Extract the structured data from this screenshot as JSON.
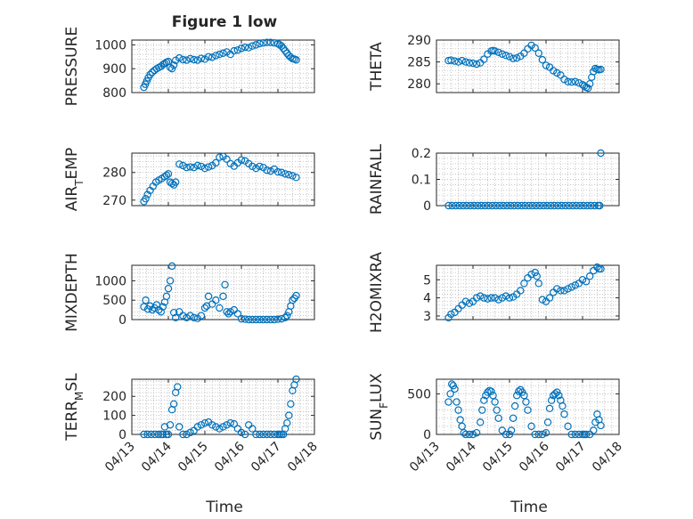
{
  "figure": {
    "title": "Figure 1 low",
    "x_axis_label": "Time"
  },
  "colors": {
    "marker": "#0072BD",
    "axes": "#262626",
    "grid": "#b0b0b0"
  },
  "chart_data": [
    {
      "type": "scatter",
      "id": "pressure",
      "ylabel": "PRESSURE",
      "ylim": [
        800,
        1020
      ],
      "yticks": [
        800,
        900,
        1000
      ],
      "ytick_labels": [
        "800",
        "900",
        "1000"
      ],
      "xlim": [
        0,
        5
      ],
      "show_xticks": false,
      "grid": true,
      "x": [
        0.33,
        0.37,
        0.41,
        0.45,
        0.5,
        0.56,
        0.62,
        0.68,
        0.74,
        0.8,
        0.86,
        0.9,
        0.95,
        1.0,
        1.05,
        1.1,
        1.15,
        1.2,
        1.3,
        1.4,
        1.5,
        1.6,
        1.7,
        1.8,
        1.9,
        2.0,
        2.1,
        2.2,
        2.3,
        2.4,
        2.5,
        2.6,
        2.7,
        2.8,
        2.9,
        3.0,
        3.1,
        3.2,
        3.3,
        3.4,
        3.5,
        3.6,
        3.7,
        3.8,
        3.9,
        4.0,
        4.05,
        4.1,
        4.15,
        4.2,
        4.25,
        4.3,
        4.35,
        4.4,
        4.45,
        4.5
      ],
      "y": [
        822,
        835,
        848,
        862,
        875,
        885,
        893,
        900,
        905,
        910,
        918,
        922,
        927,
        930,
        905,
        900,
        915,
        935,
        945,
        938,
        936,
        942,
        938,
        936,
        943,
        940,
        950,
        948,
        955,
        960,
        965,
        970,
        960,
        975,
        978,
        985,
        990,
        988,
        995,
        1000,
        1005,
        1008,
        1010,
        1010,
        1008,
        1005,
        1000,
        995,
        985,
        975,
        965,
        955,
        948,
        942,
        940,
        937
      ]
    },
    {
      "type": "scatter",
      "id": "theta",
      "ylabel": "THETA",
      "ylim": [
        278,
        290
      ],
      "yticks": [
        280,
        285,
        290
      ],
      "ytick_labels": [
        "280",
        "285",
        "290"
      ],
      "xlim": [
        0,
        5
      ],
      "show_xticks": false,
      "grid": true,
      "x": [
        0.33,
        0.4,
        0.5,
        0.6,
        0.7,
        0.8,
        0.9,
        1.0,
        1.1,
        1.2,
        1.3,
        1.4,
        1.5,
        1.55,
        1.6,
        1.7,
        1.8,
        1.9,
        2.0,
        2.1,
        2.2,
        2.3,
        2.4,
        2.5,
        2.6,
        2.7,
        2.8,
        2.9,
        3.0,
        3.1,
        3.2,
        3.3,
        3.4,
        3.5,
        3.6,
        3.7,
        3.8,
        3.9,
        4.0,
        4.05,
        4.1,
        4.15,
        4.2,
        4.25,
        4.3,
        4.35,
        4.4,
        4.45,
        4.5
      ],
      "y": [
        285.3,
        285.4,
        285.2,
        285.0,
        285.3,
        285.0,
        284.8,
        284.7,
        284.5,
        284.8,
        285.6,
        286.8,
        287.5,
        287.6,
        287.5,
        287.2,
        286.8,
        286.5,
        286.2,
        285.8,
        285.9,
        286.3,
        287.0,
        288.0,
        288.8,
        288.2,
        287.0,
        285.5,
        284.2,
        283.8,
        283.0,
        282.5,
        282.0,
        281.0,
        280.5,
        280.4,
        280.5,
        280.2,
        279.8,
        279.5,
        279.2,
        279.0,
        280.0,
        281.5,
        282.8,
        283.5,
        283.3,
        283.2,
        283.3
      ]
    },
    {
      "type": "scatter",
      "id": "air_temp",
      "ylabel": "AIR_TEMP",
      "ylim": [
        268,
        287
      ],
      "yticks": [
        270,
        280
      ],
      "ytick_labels": [
        "270",
        "280"
      ],
      "xlim": [
        0,
        5
      ],
      "show_xticks": false,
      "grid": true,
      "x": [
        0.33,
        0.38,
        0.43,
        0.5,
        0.58,
        0.66,
        0.74,
        0.82,
        0.9,
        0.95,
        1.0,
        1.05,
        1.1,
        1.15,
        1.2,
        1.3,
        1.4,
        1.5,
        1.6,
        1.7,
        1.8,
        1.9,
        2.0,
        2.1,
        2.2,
        2.3,
        2.4,
        2.5,
        2.6,
        2.7,
        2.8,
        2.9,
        3.0,
        3.1,
        3.2,
        3.3,
        3.4,
        3.5,
        3.6,
        3.7,
        3.8,
        3.9,
        4.0,
        4.1,
        4.2,
        4.3,
        4.4,
        4.5
      ],
      "y": [
        269.5,
        270.5,
        272,
        273.5,
        275,
        276.5,
        277.2,
        277.8,
        278.5,
        279,
        279.5,
        276.5,
        276,
        275.5,
        276.5,
        283,
        282.5,
        281.8,
        282,
        281.8,
        282.5,
        282.2,
        281.5,
        282.0,
        282.5,
        283.5,
        285.5,
        285.8,
        284.8,
        283.2,
        282.3,
        283.5,
        284.5,
        284.2,
        283.2,
        282.2,
        281.5,
        282.2,
        281.8,
        280.8,
        280.5,
        281.2,
        280.2,
        280.0,
        279.5,
        279.2,
        278.8,
        278.2
      ]
    },
    {
      "type": "scatter",
      "id": "rainfall",
      "ylabel": "RAINFALL",
      "ylim": [
        0,
        0.2
      ],
      "yticks": [
        0,
        0.1,
        0.2
      ],
      "ytick_labels": [
        "0",
        "0.1",
        "0.2"
      ],
      "xlim": [
        0,
        5
      ],
      "show_xticks": false,
      "grid": true,
      "x": [
        0.33,
        0.43,
        0.53,
        0.63,
        0.73,
        0.83,
        0.93,
        1.03,
        1.13,
        1.23,
        1.33,
        1.43,
        1.53,
        1.63,
        1.73,
        1.83,
        1.93,
        2.03,
        2.13,
        2.23,
        2.33,
        2.43,
        2.53,
        2.63,
        2.73,
        2.83,
        2.93,
        3.03,
        3.13,
        3.23,
        3.33,
        3.43,
        3.53,
        3.63,
        3.73,
        3.83,
        3.93,
        4.03,
        4.13,
        4.23,
        4.33,
        4.43,
        4.47,
        4.5
      ],
      "y": [
        0,
        0,
        0,
        0,
        0,
        0,
        0,
        0,
        0,
        0,
        0,
        0,
        0,
        0,
        0,
        0,
        0,
        0,
        0,
        0,
        0,
        0,
        0,
        0,
        0,
        0,
        0,
        0,
        0,
        0,
        0,
        0,
        0,
        0,
        0,
        0,
        0,
        0,
        0,
        0,
        0,
        0,
        0,
        0.2
      ]
    },
    {
      "type": "scatter",
      "id": "mixdepth",
      "ylabel": "MIXDEPTH",
      "ylim": [
        0,
        1400
      ],
      "yticks": [
        0,
        500,
        1000
      ],
      "ytick_labels": [
        "0",
        "500",
        "1000"
      ],
      "xlim": [
        0,
        5
      ],
      "show_xticks": false,
      "grid": true,
      "x": [
        0.33,
        0.38,
        0.44,
        0.5,
        0.56,
        0.62,
        0.68,
        0.74,
        0.8,
        0.85,
        0.9,
        0.95,
        1.0,
        1.05,
        1.1,
        1.15,
        1.2,
        1.3,
        1.4,
        1.5,
        1.6,
        1.7,
        1.8,
        1.9,
        2.0,
        2.05,
        2.1,
        2.2,
        2.3,
        2.4,
        2.5,
        2.55,
        2.6,
        2.65,
        2.7,
        2.8,
        2.9,
        3.0,
        3.1,
        3.2,
        3.3,
        3.4,
        3.5,
        3.6,
        3.7,
        3.8,
        3.9,
        4.0,
        4.1,
        4.2,
        4.25,
        4.3,
        4.35,
        4.4,
        4.45,
        4.5
      ],
      "y": [
        330,
        500,
        270,
        350,
        250,
        300,
        380,
        250,
        200,
        330,
        450,
        600,
        800,
        1000,
        1380,
        180,
        50,
        200,
        100,
        50,
        100,
        50,
        30,
        100,
        300,
        350,
        600,
        400,
        500,
        300,
        600,
        900,
        200,
        150,
        200,
        250,
        150,
        20,
        10,
        0,
        0,
        0,
        0,
        0,
        0,
        0,
        0,
        10,
        20,
        50,
        100,
        200,
        350,
        500,
        550,
        620
      ]
    },
    {
      "type": "scatter",
      "id": "h2omixra",
      "ylabel": "H2OMIXRA",
      "ylim": [
        2.8,
        5.8
      ],
      "yticks": [
        3,
        4,
        5
      ],
      "ytick_labels": [
        "3",
        "4",
        "5"
      ],
      "xlim": [
        0,
        5
      ],
      "show_xticks": false,
      "grid": true,
      "x": [
        0.33,
        0.4,
        0.5,
        0.6,
        0.7,
        0.8,
        0.9,
        1.0,
        1.1,
        1.2,
        1.3,
        1.4,
        1.5,
        1.6,
        1.7,
        1.8,
        1.9,
        2.0,
        2.1,
        2.2,
        2.3,
        2.4,
        2.5,
        2.6,
        2.7,
        2.75,
        2.8,
        2.9,
        3.0,
        3.1,
        3.2,
        3.3,
        3.4,
        3.5,
        3.6,
        3.7,
        3.8,
        3.9,
        4.0,
        4.1,
        4.2,
        4.3,
        4.4,
        4.45,
        4.5
      ],
      "y": [
        2.9,
        3.1,
        3.2,
        3.4,
        3.6,
        3.8,
        3.7,
        3.8,
        4.0,
        4.1,
        4.0,
        3.95,
        4.0,
        4.0,
        3.9,
        4.0,
        4.1,
        4.0,
        4.05,
        4.2,
        4.4,
        4.8,
        5.1,
        5.3,
        5.4,
        5.2,
        4.8,
        3.9,
        3.8,
        4.0,
        4.3,
        4.5,
        4.4,
        4.4,
        4.5,
        4.6,
        4.7,
        4.8,
        5.0,
        4.9,
        5.2,
        5.5,
        5.7,
        5.6,
        5.6
      ]
    },
    {
      "type": "scatter",
      "id": "terr_msl",
      "ylabel": "TERR_MSL",
      "ylim": [
        0,
        290
      ],
      "yticks": [
        0,
        100,
        200
      ],
      "ytick_labels": [
        "0",
        "100",
        "200"
      ],
      "xlim": [
        0,
        5
      ],
      "show_xticks": true,
      "grid": true,
      "x": [
        0.33,
        0.43,
        0.53,
        0.63,
        0.73,
        0.8,
        0.85,
        0.9,
        0.95,
        1.0,
        1.05,
        1.1,
        1.15,
        1.2,
        1.25,
        1.3,
        1.4,
        1.5,
        1.6,
        1.7,
        1.8,
        1.9,
        2.0,
        2.1,
        2.2,
        2.3,
        2.4,
        2.5,
        2.6,
        2.7,
        2.8,
        2.9,
        3.0,
        3.1,
        3.2,
        3.3,
        3.4,
        3.5,
        3.6,
        3.7,
        3.8,
        3.9,
        4.0,
        4.05,
        4.1,
        4.15,
        4.2,
        4.25,
        4.3,
        4.35,
        4.4,
        4.45,
        4.5
      ],
      "y": [
        0,
        0,
        0,
        0,
        0,
        0,
        0,
        40,
        0,
        0,
        50,
        130,
        160,
        220,
        250,
        40,
        0,
        0,
        10,
        20,
        40,
        50,
        60,
        65,
        50,
        40,
        30,
        40,
        50,
        60,
        55,
        30,
        10,
        0,
        50,
        30,
        0,
        0,
        0,
        0,
        0,
        0,
        0,
        0,
        0,
        0,
        30,
        60,
        100,
        160,
        230,
        260,
        290
      ]
    },
    {
      "type": "scatter",
      "id": "sun_flux",
      "ylabel": "SUN_FLUX",
      "ylim": [
        0,
        680
      ],
      "yticks": [
        0,
        500
      ],
      "ytick_labels": [
        "0",
        "500"
      ],
      "xlim": [
        0,
        5
      ],
      "show_xticks": true,
      "grid": true,
      "x": [
        0.33,
        0.38,
        0.42,
        0.46,
        0.5,
        0.55,
        0.6,
        0.65,
        0.7,
        0.75,
        0.8,
        0.9,
        1.0,
        1.1,
        1.2,
        1.25,
        1.3,
        1.35,
        1.4,
        1.45,
        1.5,
        1.55,
        1.6,
        1.65,
        1.7,
        1.8,
        1.9,
        2.0,
        2.05,
        2.1,
        2.15,
        2.2,
        2.25,
        2.3,
        2.35,
        2.4,
        2.45,
        2.5,
        2.6,
        2.7,
        2.8,
        2.9,
        3.0,
        3.05,
        3.1,
        3.15,
        3.2,
        3.25,
        3.3,
        3.35,
        3.4,
        3.45,
        3.5,
        3.6,
        3.7,
        3.8,
        3.9,
        4.0,
        4.05,
        4.1,
        4.2,
        4.3,
        4.35,
        4.4,
        4.45,
        4.5
      ],
      "y": [
        400,
        500,
        620,
        600,
        560,
        400,
        300,
        180,
        100,
        20,
        0,
        0,
        0,
        20,
        150,
        300,
        420,
        480,
        520,
        540,
        530,
        480,
        400,
        300,
        200,
        50,
        0,
        0,
        50,
        200,
        350,
        480,
        530,
        550,
        520,
        480,
        400,
        300,
        100,
        0,
        0,
        0,
        20,
        150,
        320,
        420,
        480,
        500,
        520,
        480,
        420,
        350,
        250,
        100,
        0,
        0,
        0,
        0,
        0,
        0,
        0,
        50,
        150,
        250,
        180,
        110
      ]
    }
  ],
  "x_ticks": [
    0,
    1,
    2,
    3,
    4,
    5
  ],
  "x_tick_labels": [
    "04/13",
    "04/14",
    "04/15",
    "04/16",
    "04/17",
    "04/18"
  ]
}
